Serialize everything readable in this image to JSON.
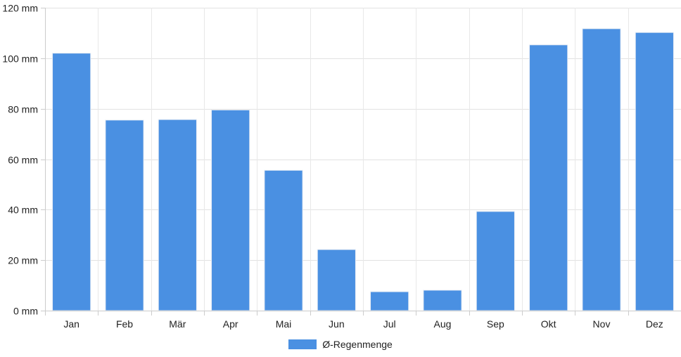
{
  "chart_data": {
    "type": "bar",
    "categories": [
      "Jan",
      "Feb",
      "Mär",
      "Apr",
      "Mai",
      "Jun",
      "Jul",
      "Aug",
      "Sep",
      "Okt",
      "Nov",
      "Dez"
    ],
    "series": [
      {
        "name": "Ø-Regenmenge",
        "values": [
          102,
          75.5,
          75.7,
          79.5,
          55.6,
          24.2,
          7.5,
          8.1,
          39.3,
          105.3,
          111.7,
          110.2
        ],
        "color": "#4a90e2"
      }
    ],
    "y_unit": "mm",
    "ylim": [
      0,
      120
    ],
    "yticks": [
      0,
      20,
      40,
      60,
      80,
      100,
      120
    ],
    "grid": true,
    "legend_position": "bottom"
  }
}
